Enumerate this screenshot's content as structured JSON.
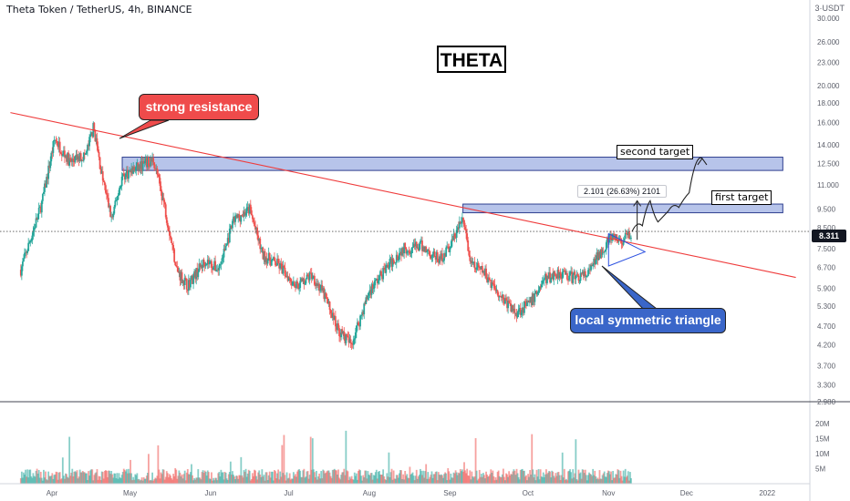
{
  "header": {
    "symbol_title": "Theta Token / TetherUS, 4h, BINANCE",
    "currency": "3·USDT"
  },
  "annotations": {
    "big_title": "THETA",
    "resistance_callout": "strong resistance",
    "triangle_callout": "local symmetric triangle",
    "second_target": "second target",
    "first_target": "first target",
    "measure": "2.101 (26.63%) 2101"
  },
  "price_axis": {
    "ticks": [
      "30.000",
      "26.000",
      "23.000",
      "20.000",
      "18.000",
      "16.000",
      "14.000",
      "12.500",
      "11.000",
      "9.500",
      "8.500",
      "7.500",
      "6.700",
      "5.900",
      "5.300",
      "4.700",
      "4.200",
      "3.700",
      "3.300",
      "2.980"
    ],
    "current_price": "8.311"
  },
  "volume_axis": {
    "ticks": [
      "20M",
      "15M",
      "10M",
      "5M"
    ]
  },
  "time_axis": {
    "ticks": [
      "Apr",
      "May",
      "Jun",
      "Jul",
      "Aug",
      "Sep",
      "Oct",
      "Nov",
      "Dec",
      "2022"
    ]
  },
  "colors": {
    "up": "#26a69a",
    "down": "#ef5350",
    "zone_fill": "#9fb0e3",
    "zone_border": "#2f3f8f",
    "resistance_line": "#ef3c3c",
    "triangle": "#2b50e0",
    "resistance_callout": "#ef4b4b",
    "triangle_callout": "#3a66c9"
  },
  "chart_data": {
    "type": "candlestick",
    "symbol": "Theta Token / TetherUS",
    "timeframe": "4h",
    "exchange": "BINANCE",
    "current_price": 8.311,
    "y_scale": "log",
    "ylim": [
      2.98,
      33.5
    ],
    "x_ticks": [
      "Apr",
      "May",
      "Jun",
      "Jul",
      "Aug",
      "Sep",
      "Oct",
      "Nov",
      "Dec",
      "2022"
    ],
    "price_path": [
      [
        "2021-03-20",
        6.6
      ],
      [
        "2021-03-28",
        9.8
      ],
      [
        "2021-04-02",
        14.5
      ],
      [
        "2021-04-08",
        12.6
      ],
      [
        "2021-04-14",
        13.2
      ],
      [
        "2021-04-17",
        15.6
      ],
      [
        "2021-04-20",
        11.8
      ],
      [
        "2021-04-24",
        8.9
      ],
      [
        "2021-04-28",
        11.6
      ],
      [
        "2021-05-04",
        12.2
      ],
      [
        "2021-05-10",
        12.8
      ],
      [
        "2021-05-14",
        9.9
      ],
      [
        "2021-05-19",
        6.6
      ],
      [
        "2021-05-23",
        6.0
      ],
      [
        "2021-05-30",
        7.0
      ],
      [
        "2021-06-04",
        6.6
      ],
      [
        "2021-06-10",
        8.9
      ],
      [
        "2021-06-16",
        9.5
      ],
      [
        "2021-06-21",
        7.2
      ],
      [
        "2021-06-27",
        6.8
      ],
      [
        "2021-07-04",
        6.0
      ],
      [
        "2021-07-10",
        6.4
      ],
      [
        "2021-07-15",
        5.6
      ],
      [
        "2021-07-20",
        4.6
      ],
      [
        "2021-07-25",
        4.2
      ],
      [
        "2021-08-01",
        5.8
      ],
      [
        "2021-08-07",
        6.6
      ],
      [
        "2021-08-14",
        7.5
      ],
      [
        "2021-08-21",
        7.6
      ],
      [
        "2021-08-28",
        7.0
      ],
      [
        "2021-09-01",
        7.6
      ],
      [
        "2021-09-06",
        9.0
      ],
      [
        "2021-09-09",
        6.8
      ],
      [
        "2021-09-14",
        6.5
      ],
      [
        "2021-09-21",
        5.6
      ],
      [
        "2021-09-26",
        5.1
      ],
      [
        "2021-10-02",
        5.4
      ],
      [
        "2021-10-07",
        6.2
      ],
      [
        "2021-10-13",
        6.5
      ],
      [
        "2021-10-18",
        6.3
      ],
      [
        "2021-10-24",
        6.4
      ],
      [
        "2021-10-29",
        7.4
      ],
      [
        "2021-11-02",
        8.0
      ],
      [
        "2021-11-06",
        7.8
      ],
      [
        "2021-11-10",
        8.3
      ]
    ],
    "forecast_path": [
      [
        "2021-11-10",
        8.3
      ],
      [
        "2021-11-14",
        8.6
      ],
      [
        "2021-11-17",
        10.0
      ],
      [
        "2021-11-20",
        8.8
      ],
      [
        "2021-11-24",
        9.4
      ],
      [
        "2021-11-28",
        9.6
      ],
      [
        "2021-12-02",
        10.5
      ],
      [
        "2021-12-07",
        12.9
      ]
    ],
    "resistance_line": [
      [
        "2021-03-16",
        17.0
      ],
      [
        "2022-01-12",
        6.3
      ]
    ],
    "zones": [
      {
        "name": "second target",
        "from": "2021-04-28",
        "to": "2022-01-07",
        "low": 12.0,
        "high": 13.0
      },
      {
        "name": "first target",
        "from": "2021-09-06",
        "to": "2022-01-07",
        "low": 9.3,
        "high": 9.8
      }
    ],
    "triangle": [
      [
        "2021-11-01",
        8.2
      ],
      [
        "2021-11-15",
        7.35
      ],
      [
        "2021-11-01",
        6.75
      ]
    ],
    "measure": {
      "label": "2.101 (26.63%) 2101",
      "from": 7.9,
      "to": 10.0
    },
    "volume": {
      "unit": "M",
      "ylim": [
        0,
        24
      ]
    }
  }
}
